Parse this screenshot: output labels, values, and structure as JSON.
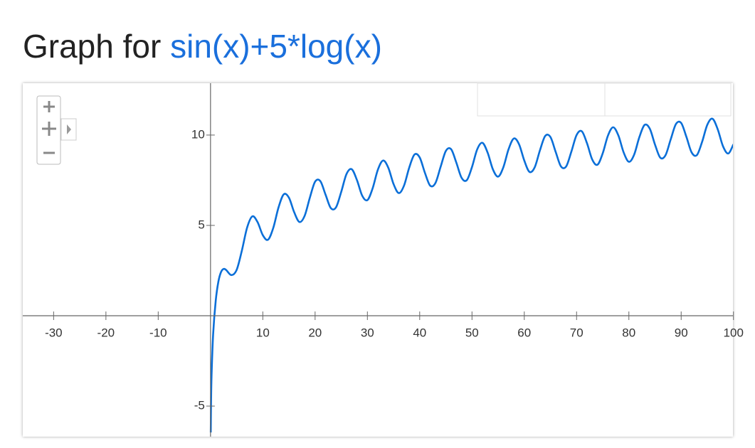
{
  "chart_data": {
    "type": "line",
    "title": "Graph for",
    "function": "sin(x)+5*log(x)",
    "x": [
      0.05,
      0.1,
      0.2,
      0.5,
      1,
      1.5,
      2,
      2.5,
      3,
      4,
      5,
      6,
      7,
      8,
      9,
      10,
      11,
      12,
      13,
      14,
      15,
      16,
      17,
      18,
      19,
      20,
      21,
      22,
      23,
      24,
      25,
      26,
      27,
      28,
      29,
      30,
      31,
      32,
      33,
      34,
      35,
      36,
      37,
      38,
      39,
      40,
      41,
      42,
      43,
      44,
      45,
      46,
      47,
      48,
      49,
      50,
      51,
      52,
      53,
      54,
      55,
      56,
      57,
      58,
      59,
      60,
      61,
      62,
      63,
      64,
      65,
      66,
      67,
      68,
      69,
      70,
      71,
      72,
      73,
      74,
      75,
      76,
      77,
      78,
      79,
      80,
      81,
      82,
      83,
      84,
      85,
      86,
      87,
      88,
      89,
      90,
      91,
      92,
      93,
      94,
      95,
      96,
      97,
      98,
      99,
      100
    ],
    "series": [
      {
        "color": "#0b6fd8",
        "values": [
          -6.46,
          -4.9,
          -3.3,
          -1.03,
          0.84,
          1.88,
          2.41,
          2.59,
          2.53,
          2.25,
          2.54,
          3.61,
          4.88,
          5.5,
          5.18,
          4.46,
          4.21,
          4.86,
          5.99,
          6.72,
          6.53,
          5.73,
          5.19,
          5.53,
          6.54,
          7.42,
          7.45,
          6.7,
          5.96,
          6.0,
          6.86,
          7.84,
          8.11,
          7.51,
          6.65,
          6.4,
          7.05,
          8.08,
          8.59,
          8.19,
          7.29,
          6.79,
          7.2,
          8.2,
          8.92,
          8.76,
          7.91,
          7.2,
          7.34,
          8.24,
          9.12,
          9.22,
          8.48,
          7.64,
          7.5,
          8.23,
          9.21,
          9.57,
          9.02,
          8.1,
          7.7,
          8.22,
          9.22,
          9.81,
          9.49,
          8.59,
          7.96,
          8.22,
          9.16,
          9.95,
          9.89,
          9.07,
          8.27,
          8.26,
          9.08,
          10.0,
          10.21,
          9.54,
          8.64,
          8.36,
          8.99,
          9.97,
          10.43,
          9.97,
          9.04,
          8.52,
          8.91,
          9.88,
          10.56,
          10.35,
          9.47,
          8.75,
          8.88,
          9.76,
          10.61,
          10.67,
          9.9,
          9.04,
          8.89,
          9.62,
          10.57,
          10.9,
          10.31,
          9.38,
          8.98,
          9.49
        ]
      }
    ],
    "xlim": [
      -35.9,
      99.9
    ],
    "ylim": [
      -6.69,
      12.87
    ],
    "xticks": [
      -30,
      -20,
      -10,
      10,
      20,
      30,
      40,
      50,
      60,
      70,
      80,
      90,
      100
    ],
    "yticks": [
      -5,
      5,
      10
    ]
  }
}
